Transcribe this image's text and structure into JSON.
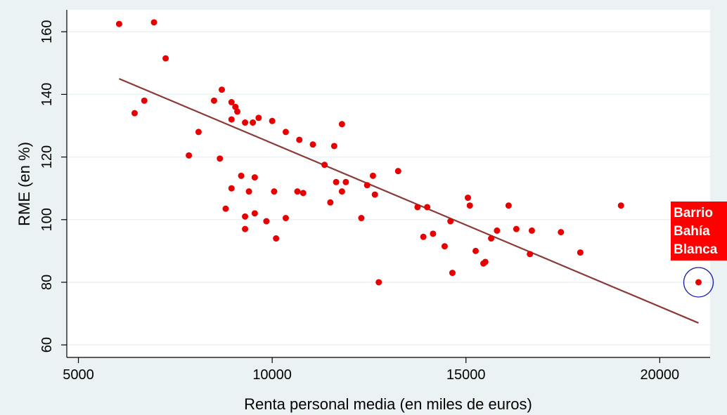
{
  "chart_data": {
    "type": "scatter",
    "title": "",
    "xlabel": "Renta personal media (en miles de euros)",
    "ylabel": "RME (en %)",
    "xlim": [
      4700,
      21300
    ],
    "ylim": [
      56,
      167
    ],
    "xticks": [
      5000,
      10000,
      15000,
      20000
    ],
    "yticks": [
      60,
      80,
      100,
      120,
      140,
      160
    ],
    "grid": true,
    "colors": {
      "points": "#e60000",
      "fit_line": "#8b3a3a",
      "background": "#eaf2f3",
      "plot_area": "#ffffff",
      "grid": "#eaf2f3",
      "highlight_circle": "#1a1aaa",
      "annotation_bg": "#ff0000",
      "annotation_text": "#ffffff"
    },
    "points": [
      [
        6050,
        162.5
      ],
      [
        6950,
        163
      ],
      [
        7250,
        151.5
      ],
      [
        6450,
        134
      ],
      [
        6700,
        138
      ],
      [
        7850,
        120.5
      ],
      [
        8100,
        128
      ],
      [
        8500,
        138
      ],
      [
        8650,
        119.5
      ],
      [
        8700,
        141.5
      ],
      [
        8800,
        103.5
      ],
      [
        8950,
        132
      ],
      [
        8950,
        137.5
      ],
      [
        8950,
        110
      ],
      [
        9050,
        136
      ],
      [
        9100,
        134.5
      ],
      [
        9200,
        114
      ],
      [
        9300,
        131
      ],
      [
        9300,
        101
      ],
      [
        9300,
        97
      ],
      [
        9400,
        109
      ],
      [
        9500,
        131
      ],
      [
        9550,
        113.5
      ],
      [
        9550,
        102
      ],
      [
        9650,
        132.5
      ],
      [
        9850,
        99.5
      ],
      [
        10000,
        131.5
      ],
      [
        10050,
        109
      ],
      [
        10100,
        94
      ],
      [
        10350,
        128
      ],
      [
        10350,
        100.5
      ],
      [
        10700,
        125.5
      ],
      [
        10650,
        109
      ],
      [
        10800,
        108.5
      ],
      [
        11050,
        124
      ],
      [
        11350,
        117.5
      ],
      [
        11500,
        105.5
      ],
      [
        11600,
        123.5
      ],
      [
        11650,
        112
      ],
      [
        11800,
        130.5
      ],
      [
        11800,
        109
      ],
      [
        11900,
        112
      ],
      [
        12300,
        100.5
      ],
      [
        12450,
        111
      ],
      [
        12600,
        114
      ],
      [
        12650,
        108
      ],
      [
        12750,
        80
      ],
      [
        13250,
        115.5
      ],
      [
        13750,
        104
      ],
      [
        13900,
        94.5
      ],
      [
        14000,
        104
      ],
      [
        14150,
        95.5
      ],
      [
        14450,
        91.5
      ],
      [
        14600,
        99.5
      ],
      [
        14650,
        83
      ],
      [
        15050,
        107
      ],
      [
        15100,
        104.5
      ],
      [
        15250,
        90
      ],
      [
        15450,
        86
      ],
      [
        15500,
        86.5
      ],
      [
        15650,
        94
      ],
      [
        15800,
        96.5
      ],
      [
        16100,
        104.5
      ],
      [
        16300,
        97
      ],
      [
        16650,
        89
      ],
      [
        16700,
        96.5
      ],
      [
        17450,
        96
      ],
      [
        17950,
        89.5
      ],
      [
        19000,
        104.5
      ],
      [
        21000,
        80
      ]
    ],
    "fit_line": {
      "x": [
        6050,
        21000
      ],
      "y": [
        145,
        67
      ]
    },
    "highlight": {
      "point": [
        21000,
        80
      ],
      "label_lines": [
        "Barrio",
        "Bahía",
        "Blanca"
      ]
    }
  }
}
